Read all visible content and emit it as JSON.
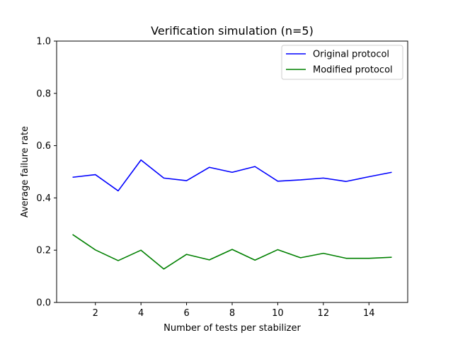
{
  "chart_data": {
    "type": "line",
    "title": "Verification simulation (n=5)",
    "xlabel": "Number of tests per stabilizer",
    "ylabel": "Average failure rate",
    "x": [
      1,
      2,
      3,
      4,
      5,
      6,
      7,
      8,
      9,
      10,
      11,
      12,
      13,
      14,
      15
    ],
    "xlim": [
      0.3,
      15.7
    ],
    "ylim": [
      0.0,
      1.0
    ],
    "xticks": [
      2,
      4,
      6,
      8,
      10,
      12,
      14
    ],
    "xtick_labels": [
      "2",
      "4",
      "6",
      "8",
      "10",
      "12",
      "14"
    ],
    "yticks": [
      0.0,
      0.2,
      0.4,
      0.6,
      0.8,
      1.0
    ],
    "ytick_labels": [
      "0.0",
      "0.2",
      "0.4",
      "0.6",
      "0.8",
      "1.0"
    ],
    "grid": false,
    "legend_position": "top-right",
    "series": [
      {
        "name": "Original protocol",
        "color": "#0000ff",
        "values": [
          0.479,
          0.489,
          0.427,
          0.545,
          0.476,
          0.466,
          0.517,
          0.498,
          0.52,
          0.464,
          0.469,
          0.476,
          0.463,
          0.481,
          0.498
        ]
      },
      {
        "name": "Modified protocol",
        "color": "#008000",
        "values": [
          0.26,
          0.201,
          0.16,
          0.2,
          0.128,
          0.184,
          0.163,
          0.203,
          0.162,
          0.202,
          0.171,
          0.188,
          0.169,
          0.169,
          0.173
        ]
      }
    ]
  }
}
